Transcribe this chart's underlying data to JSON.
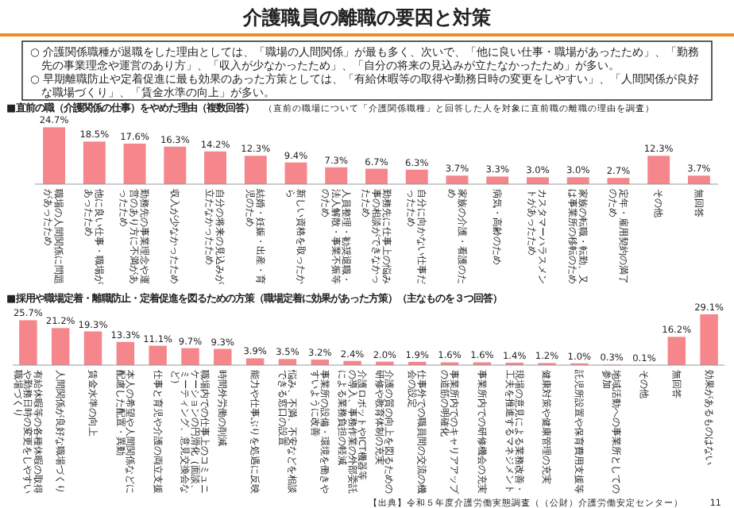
{
  "chart_data": [
    {
      "type": "other",
      "title": "介護職員の離職の要因と対策",
      "annotations": [
        "○ 介護関係職種が退職をした理由としては、「職場の人間関係」が最も多く、次いで、「他に良い仕事・職場があったため」、「勤務先の事業理念や運営のあり方」、「収入が少なかったため」、「自分の将来の見込みが立たなかったため」が多い。",
        "○ 早期離職防止や定着促進に最も効果のあった方策としては、「有給休暇等の取得や勤務日時の変更をしやすい」、「人間関係が良好な職場づくり」、「賃金水準の向上」が多い。"
      ]
    },
    {
      "type": "bar",
      "title": "■直前の職（介護関係の仕事）をやめた理由（複数回答）",
      "subtitle": "（直前の職場について「介護関係職種」と回答した人を対象に直前職の離職の理由を調査）",
      "color": "#f4868c",
      "categories": [
        "職場の人間関係に問題があったため",
        "他に良い仕事・職場があったため",
        "勤務先の事業理念や運営のあり方に不満があったため",
        "収入が少なかったため",
        "自分の将来の見込みが立たなかったため",
        "結婚・妊娠・出産・育児のため",
        "新しい資格を取ったから",
        "人員整理・勧奨退職・法人解散・事業不振等のため",
        "勤務先に仕事上の悩み事の相談ができなかったため",
        "自分に向かない仕事だったため",
        "家族の介護・看護のため",
        "病気・高齢のため",
        "カスタマーハラスメントがあったため",
        "家族の転職・転勤、又は事業所の移転のため",
        "定年・雇用契約の満了のため",
        "その他",
        "無回答"
      ],
      "values": [
        24.7,
        18.5,
        17.6,
        16.3,
        14.2,
        12.3,
        9.4,
        7.3,
        6.7,
        6.3,
        3.7,
        3.3,
        3.0,
        3.0,
        2.7,
        12.3,
        3.7
      ],
      "value_labels": [
        "24.7%",
        "18.5%",
        "17.6%",
        "16.3%",
        "14.2%",
        "12.3%",
        "9.4%",
        "7.3%",
        "6.7%",
        "6.3%",
        "3.7%",
        "3.3%",
        "3.0%",
        "3.0%",
        "2.7%",
        "12.3%",
        "3.7%"
      ]
    },
    {
      "type": "bar",
      "title": "■採用や職場定着・離職防止・定着促進を図るための方策（職場定着に効果があった方策）（主なものを３つ回答）",
      "color": "#f4868c",
      "categories": [
        "有給休暇等の各種休暇の取得や勤務日時の変更をしやすい職場づくり",
        "人間関係が良好な職場づくり",
        "賃金水準の向上",
        "本人の希望や人間関係などに配慮した配置・異動",
        "仕事と育児や介護の両立支援",
        "職場内での仕事上のコミュニケーションの円滑化（面談、ミーティング、意見交換会など）",
        "時間外労働の削減",
        "能力や仕事ぶりを処遇に反映",
        "悩み、不満、不安などを相談できる窓口の設置",
        "事業所の設備・環境を働きやすいように改善",
        "介護ロボットやICT機器等の導入、事務作業の外部委託による業務負担の軽減",
        "介護の質の向上を図るための研修や教育体制の充実",
        "仕事外での職員間の交流の機会の設定",
        "事業所内でのキャリアアップの道筋の明確化",
        "事業所内での研修機会の充実",
        "現場の意見による業務改善・工夫を推進するマネジメント",
        "健康対策や健康管理の充実",
        "託児所設置や保育費用支援等",
        "地域活動への事業所としての参加",
        "その他",
        "無回答",
        "効果があるものはない"
      ],
      "values": [
        25.7,
        21.2,
        19.3,
        13.3,
        11.1,
        9.7,
        9.3,
        3.9,
        3.5,
        3.2,
        2.4,
        2.0,
        1.9,
        1.6,
        1.6,
        1.4,
        1.2,
        1.0,
        0.3,
        0.1,
        16.2,
        29.1
      ],
      "value_labels": [
        "25.7%",
        "21.2%",
        "19.3%",
        "13.3%",
        "11.1%",
        "9.7%",
        "9.3%",
        "3.9%",
        "3.5%",
        "3.2%",
        "2.4%",
        "2.0%",
        "1.9%",
        "1.6%",
        "1.6%",
        "1.4%",
        "1.2%",
        "1.0%",
        "0.3%",
        "0.1%",
        "16.2%",
        "29.1%"
      ],
      "annotations": [
        "【出典】令和５年度介護労働実態調査（（公財）介護労働安定センター）",
        "11"
      ]
    }
  ]
}
